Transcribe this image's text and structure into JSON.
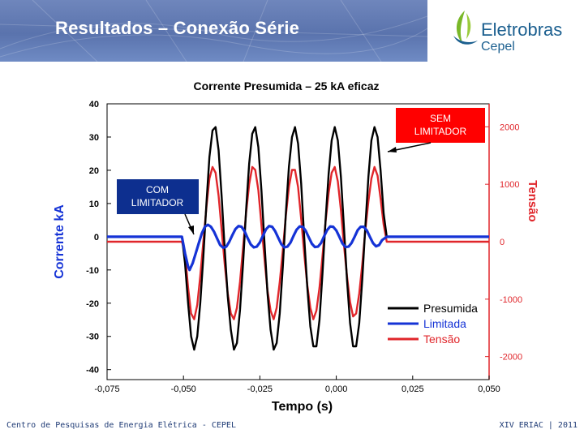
{
  "header": {
    "title": "Resultados – Conexão Série"
  },
  "logo": {
    "name": "Eletrobras",
    "sub": "Cepel",
    "colors": {
      "green": "#7ab829",
      "blue": "#1b5f8f"
    }
  },
  "footer": {
    "left": "Centro de Pesquisas de Energia Elétrica - CEPEL",
    "right": "XIV ERIAC | 2011"
  },
  "chart_data": {
    "type": "line",
    "title": "Corrente Presumida – 25 kA eficaz",
    "xlabel": "Tempo (s)",
    "ylabel": "Corrente kA",
    "y2label": "Tensão",
    "xlim": [
      -0.075,
      0.05
    ],
    "ylim": [
      -43,
      40
    ],
    "y2lim": [
      -2400,
      2400
    ],
    "x_ticks": [
      "-0,075",
      "-0,050",
      "-0,025",
      "0,000",
      "0,025",
      "0,050"
    ],
    "y_ticks": [
      "40",
      "30",
      "20",
      "10",
      "0",
      "-10",
      "-20",
      "-30",
      "-40"
    ],
    "y2_ticks": [
      "2000",
      "1000",
      "0",
      "-1000",
      "-2000"
    ],
    "legend": {
      "position": "bottom-right"
    },
    "series": [
      {
        "name": "Presumida",
        "color": "#000000",
        "axis": "left",
        "points": [
          [
            -0.075,
            0
          ],
          [
            -0.0505,
            0
          ],
          [
            -0.0495,
            -8
          ],
          [
            -0.0485,
            -20
          ],
          [
            -0.0475,
            -30
          ],
          [
            -0.0465,
            -34
          ],
          [
            -0.0455,
            -30
          ],
          [
            -0.0445,
            -20
          ],
          [
            -0.0435,
            -6
          ],
          [
            -0.0425,
            10
          ],
          [
            -0.0415,
            24
          ],
          [
            -0.0405,
            32
          ],
          [
            -0.0395,
            33
          ],
          [
            -0.0385,
            26
          ],
          [
            -0.0375,
            12
          ],
          [
            -0.0365,
            -4
          ],
          [
            -0.0355,
            -18
          ],
          [
            -0.0345,
            -28
          ],
          [
            -0.0335,
            -34
          ],
          [
            -0.0325,
            -32
          ],
          [
            -0.0315,
            -22
          ],
          [
            -0.0305,
            -8
          ],
          [
            -0.0295,
            8
          ],
          [
            -0.0285,
            22
          ],
          [
            -0.0275,
            31
          ],
          [
            -0.0265,
            33
          ],
          [
            -0.0255,
            27
          ],
          [
            -0.0245,
            14
          ],
          [
            -0.0235,
            -2
          ],
          [
            -0.0225,
            -17
          ],
          [
            -0.0215,
            -28
          ],
          [
            -0.0205,
            -34
          ],
          [
            -0.0195,
            -32
          ],
          [
            -0.0185,
            -23
          ],
          [
            -0.0175,
            -9
          ],
          [
            -0.0165,
            7
          ],
          [
            -0.0155,
            21
          ],
          [
            -0.0145,
            30
          ],
          [
            -0.0135,
            33
          ],
          [
            -0.0125,
            28
          ],
          [
            -0.0115,
            16
          ],
          [
            -0.0105,
            0
          ],
          [
            -0.0095,
            -15
          ],
          [
            -0.0085,
            -27
          ],
          [
            -0.0075,
            -33
          ],
          [
            -0.0065,
            -33
          ],
          [
            -0.0055,
            -25
          ],
          [
            -0.0045,
            -11
          ],
          [
            -0.0035,
            5
          ],
          [
            -0.0025,
            19
          ],
          [
            -0.0015,
            29
          ],
          [
            -0.0005,
            33
          ],
          [
            0.0005,
            29
          ],
          [
            0.0015,
            18
          ],
          [
            0.0025,
            3
          ],
          [
            0.0035,
            -13
          ],
          [
            0.0045,
            -26
          ],
          [
            0.0055,
            -33
          ],
          [
            0.0065,
            -33
          ],
          [
            0.0075,
            -26
          ],
          [
            0.0085,
            -13
          ],
          [
            0.0095,
            3
          ],
          [
            0.0105,
            18
          ],
          [
            0.0115,
            29
          ],
          [
            0.0125,
            33
          ],
          [
            0.0135,
            30
          ],
          [
            0.0145,
            20
          ],
          [
            0.0155,
            7
          ],
          [
            0.0165,
            0
          ],
          [
            0.05,
            0
          ]
        ]
      },
      {
        "name": "Limitada",
        "color": "#1533d6",
        "axis": "left",
        "points": [
          [
            -0.075,
            0
          ],
          [
            -0.0505,
            0
          ],
          [
            -0.0495,
            -5
          ],
          [
            -0.0485,
            -9
          ],
          [
            -0.048,
            -10
          ],
          [
            -0.047,
            -8
          ],
          [
            -0.046,
            -5
          ],
          [
            -0.045,
            -2
          ],
          [
            -0.044,
            1
          ],
          [
            -0.043,
            3
          ],
          [
            -0.042,
            3.6
          ],
          [
            -0.041,
            3
          ],
          [
            -0.04,
            1.5
          ],
          [
            -0.039,
            -0.5
          ],
          [
            -0.038,
            -2.5
          ],
          [
            -0.037,
            -3.3
          ],
          [
            -0.036,
            -3
          ],
          [
            -0.035,
            -1.5
          ],
          [
            -0.034,
            0.5
          ],
          [
            -0.033,
            2.3
          ],
          [
            -0.032,
            3.2
          ],
          [
            -0.031,
            3
          ],
          [
            -0.03,
            1.6
          ],
          [
            -0.029,
            -0.4
          ],
          [
            -0.028,
            -2.3
          ],
          [
            -0.027,
            -3.2
          ],
          [
            -0.026,
            -3
          ],
          [
            -0.025,
            -1.7
          ],
          [
            -0.024,
            0.3
          ],
          [
            -0.023,
            2.2
          ],
          [
            -0.022,
            3.2
          ],
          [
            -0.021,
            3
          ],
          [
            -0.02,
            1.7
          ],
          [
            -0.019,
            -0.3
          ],
          [
            -0.018,
            -2.2
          ],
          [
            -0.017,
            -3.2
          ],
          [
            -0.016,
            -3
          ],
          [
            -0.015,
            -1.8
          ],
          [
            -0.014,
            0.2
          ],
          [
            -0.013,
            2.1
          ],
          [
            -0.012,
            3.1
          ],
          [
            -0.011,
            3
          ],
          [
            -0.01,
            1.8
          ],
          [
            -0.009,
            -0.2
          ],
          [
            -0.008,
            -2.1
          ],
          [
            -0.007,
            -3.1
          ],
          [
            -0.006,
            -3
          ],
          [
            -0.005,
            -1.9
          ],
          [
            -0.004,
            0.1
          ],
          [
            -0.003,
            2
          ],
          [
            -0.002,
            3.1
          ],
          [
            -0.001,
            3
          ],
          [
            0,
            1.9
          ],
          [
            0.001,
            0
          ],
          [
            0.002,
            -2
          ],
          [
            0.003,
            -3.1
          ],
          [
            0.004,
            -3
          ],
          [
            0.005,
            -1.9
          ],
          [
            0.006,
            0
          ],
          [
            0.007,
            2
          ],
          [
            0.008,
            3
          ],
          [
            0.009,
            3
          ],
          [
            0.01,
            1.9
          ],
          [
            0.011,
            0
          ],
          [
            0.012,
            -1.9
          ],
          [
            0.013,
            -2.9
          ],
          [
            0.014,
            -2.5
          ],
          [
            0.015,
            -1
          ],
          [
            0.0165,
            0
          ],
          [
            0.05,
            0
          ]
        ]
      },
      {
        "name": "Tensão",
        "color": "#e0262b",
        "axis": "right",
        "points": [
          [
            -0.075,
            0
          ],
          [
            -0.0505,
            0
          ],
          [
            -0.0495,
            -200
          ],
          [
            -0.0485,
            -800
          ],
          [
            -0.0475,
            -1250
          ],
          [
            -0.0465,
            -1350
          ],
          [
            -0.0455,
            -1100
          ],
          [
            -0.0445,
            -600
          ],
          [
            -0.0435,
            0
          ],
          [
            -0.0425,
            600
          ],
          [
            -0.0415,
            1100
          ],
          [
            -0.0405,
            1300
          ],
          [
            -0.0395,
            1200
          ],
          [
            -0.0385,
            800
          ],
          [
            -0.0375,
            200
          ],
          [
            -0.0365,
            -400
          ],
          [
            -0.0355,
            -900
          ],
          [
            -0.0345,
            -1250
          ],
          [
            -0.0335,
            -1350
          ],
          [
            -0.0325,
            -1150
          ],
          [
            -0.0315,
            -700
          ],
          [
            -0.0305,
            -100
          ],
          [
            -0.0295,
            500
          ],
          [
            -0.0285,
            1000
          ],
          [
            -0.0275,
            1300
          ],
          [
            -0.0265,
            1250
          ],
          [
            -0.0255,
            900
          ],
          [
            -0.0245,
            300
          ],
          [
            -0.0235,
            -300
          ],
          [
            -0.0225,
            -850
          ],
          [
            -0.0215,
            -1200
          ],
          [
            -0.0205,
            -1350
          ],
          [
            -0.0195,
            -1150
          ],
          [
            -0.0185,
            -700
          ],
          [
            -0.0175,
            -150
          ],
          [
            -0.0165,
            450
          ],
          [
            -0.0155,
            950
          ],
          [
            -0.0145,
            1250
          ],
          [
            -0.0135,
            1250
          ],
          [
            -0.0125,
            950
          ],
          [
            -0.0115,
            400
          ],
          [
            -0.0105,
            -200
          ],
          [
            -0.0095,
            -750
          ],
          [
            -0.0085,
            -1150
          ],
          [
            -0.0075,
            -1350
          ],
          [
            -0.0065,
            -1200
          ],
          [
            -0.0055,
            -800
          ],
          [
            -0.0045,
            -250
          ],
          [
            -0.0035,
            350
          ],
          [
            -0.0025,
            850
          ],
          [
            -0.0015,
            1200
          ],
          [
            -0.0005,
            1300
          ],
          [
            0.0005,
            1050
          ],
          [
            0.0015,
            550
          ],
          [
            0.0025,
            -50
          ],
          [
            0.0035,
            -600
          ],
          [
            0.0045,
            -1050
          ],
          [
            0.0055,
            -1300
          ],
          [
            0.0065,
            -1250
          ],
          [
            0.0075,
            -900
          ],
          [
            0.0085,
            -400
          ],
          [
            0.0095,
            200
          ],
          [
            0.0105,
            700
          ],
          [
            0.0115,
            1100
          ],
          [
            0.0125,
            1300
          ],
          [
            0.0135,
            1150
          ],
          [
            0.0145,
            750
          ],
          [
            0.0155,
            300
          ],
          [
            0.0165,
            0
          ],
          [
            0.05,
            0
          ]
        ]
      }
    ],
    "annotations": [
      {
        "text": "SEM\nLIMITADOR",
        "box_color": "#ff0000",
        "text_color": "#ffffff"
      },
      {
        "text": "COM\nLIMITADOR",
        "box_color": "#0d2f8f",
        "text_color": "#ffffff"
      }
    ]
  }
}
